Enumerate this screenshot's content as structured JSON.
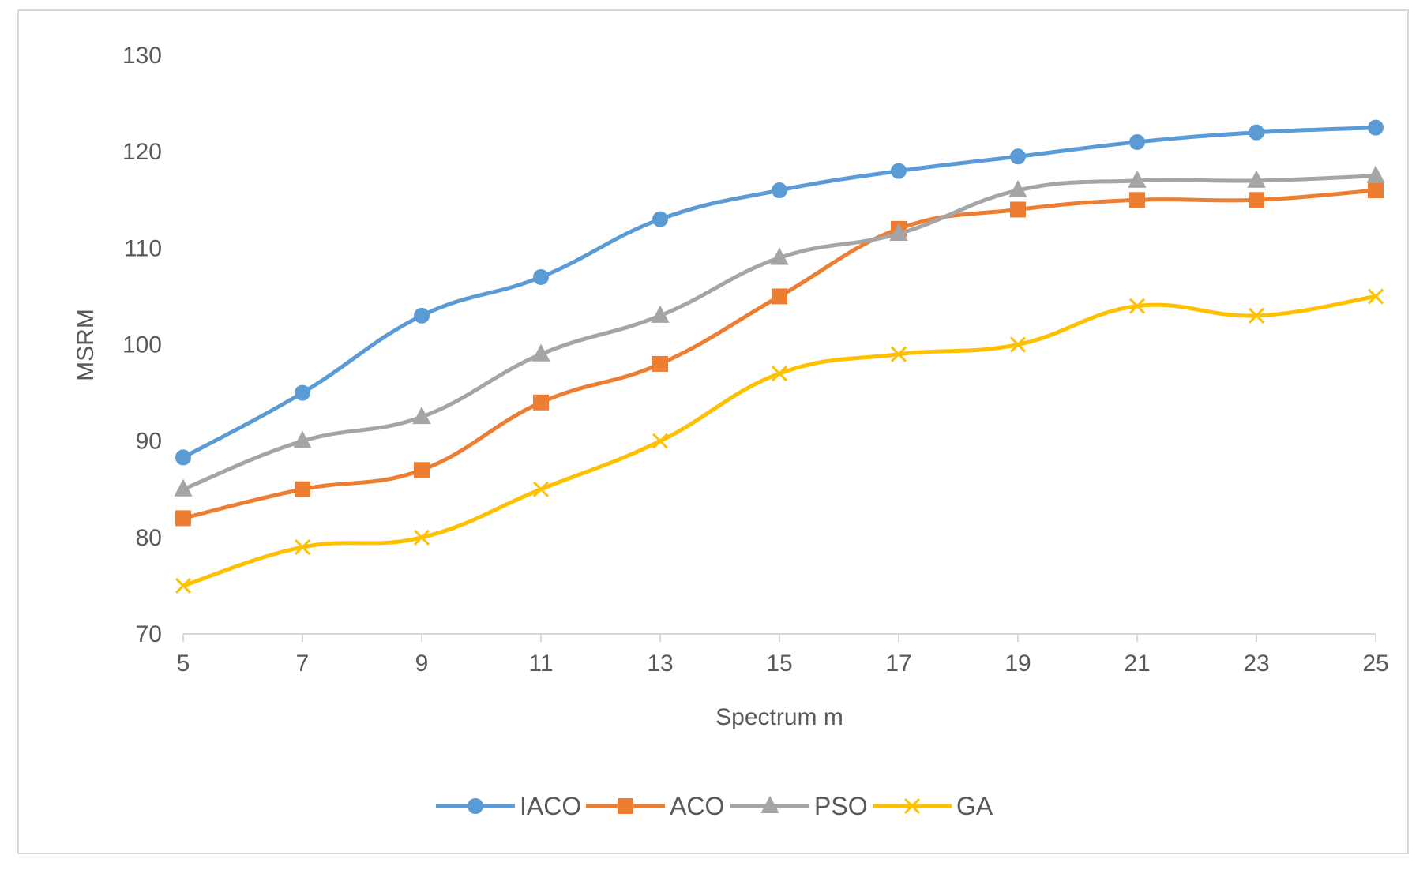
{
  "chart_data": {
    "type": "line",
    "title": "",
    "xlabel": "Spectrum m",
    "ylabel": "MSRM",
    "x": [
      5,
      7,
      9,
      11,
      13,
      15,
      17,
      19,
      21,
      23,
      25
    ],
    "x_ticks": [
      "5",
      "7",
      "9",
      "11",
      "13",
      "15",
      "17",
      "19",
      "21",
      "23",
      "25"
    ],
    "y_ticks": [
      "70",
      "80",
      "90",
      "100",
      "110",
      "120",
      "130"
    ],
    "ylim": [
      70,
      130
    ],
    "xlim": [
      5,
      25
    ],
    "grid": false,
    "legend_position": "bottom",
    "series": [
      {
        "name": "IACO",
        "color": "#5b9bd5",
        "marker": "circle",
        "values": [
          88.3,
          95,
          103,
          107,
          113,
          116,
          118,
          119.5,
          121,
          122,
          122.5
        ]
      },
      {
        "name": "ACO",
        "color": "#ed7d31",
        "marker": "square",
        "values": [
          82,
          85,
          87,
          94,
          98,
          105,
          112,
          114,
          115,
          115,
          116
        ]
      },
      {
        "name": "PSO",
        "color": "#a5a5a5",
        "marker": "triangle",
        "values": [
          85,
          90,
          92.5,
          99,
          103,
          109,
          111.5,
          116,
          117,
          117,
          117.5
        ]
      },
      {
        "name": "GA",
        "color": "#ffc000",
        "marker": "x",
        "values": [
          75,
          79,
          80,
          85,
          90,
          97,
          99,
          100,
          104,
          103,
          105
        ]
      }
    ]
  }
}
